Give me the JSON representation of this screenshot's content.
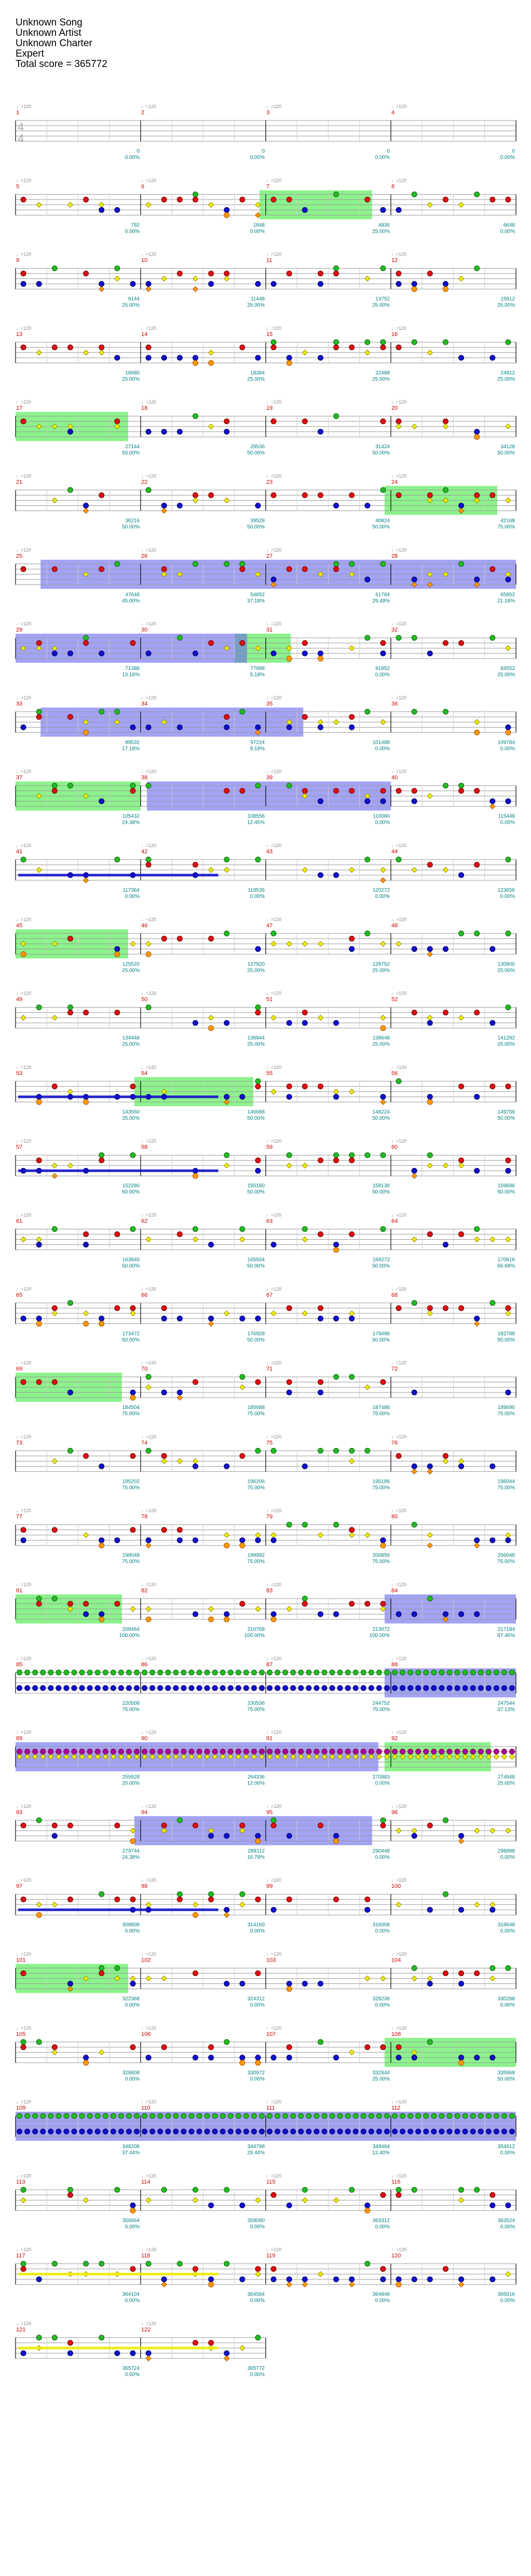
{
  "header": {
    "song": "Unknown Song",
    "artist": "Unknown Artist",
    "charter": "Unknown Charter",
    "difficulty": "Expert",
    "total_score": "Total score = 365772"
  },
  "time_signature": {
    "top": "4",
    "bottom": "4"
  },
  "bpm_label": "♩=120",
  "colors": {
    "green": "#22bb22",
    "red": "#dd1111",
    "yellow": "#eeee00",
    "blue": "#1111cc",
    "orange": "#ff9900",
    "purple": "#aa00aa",
    "sp_phrase": "#66ee66",
    "sp_active": "#6666ee",
    "score_text": "#008080",
    "measure_num": "#cc0000"
  },
  "rows": [
    {
      "m": 1,
      "scores": [
        "0",
        "0",
        "0",
        "0"
      ],
      "pcts": [
        "0.00%",
        "0.00%",
        "0.00%",
        "0.00%"
      ],
      "intro": true
    },
    {
      "m": 5,
      "scores": [
        "792",
        "1848",
        "4836",
        "6648"
      ],
      "pcts": [
        "0.00%",
        "0.00%",
        "25.00%",
        "0.00%"
      ]
    },
    {
      "m": 9,
      "scores": [
        "9144",
        "11448",
        "13752",
        "15912"
      ],
      "pcts": [
        "25.00%",
        "25.00%",
        "25.00%",
        "25.00%"
      ]
    },
    {
      "m": 13,
      "scores": [
        "16680",
        "18384",
        "22488",
        "24912"
      ],
      "pcts": [
        "25.00%",
        "25.00%",
        "25.00%",
        "25.00%"
      ]
    },
    {
      "m": 17,
      "scores": [
        "27144",
        "29536",
        "31424",
        "34128"
      ],
      "pcts": [
        "50.00%",
        "50.00%",
        "50.00%",
        "50.00%"
      ]
    },
    {
      "m": 21,
      "scores": [
        "36216",
        "39528",
        "40824",
        "42168"
      ],
      "pcts": [
        "50.00%",
        "50.00%",
        "50.00%",
        "75.00%"
      ]
    },
    {
      "m": 25,
      "scores": [
        "47648",
        "54852",
        "61764",
        "65852"
      ],
      "pcts": [
        "45.00%",
        "37.18%",
        "29.49%",
        "21.18%"
      ]
    },
    {
      "m": 29,
      "scores": [
        "71388",
        "77988",
        "81852",
        "84552"
      ],
      "pcts": [
        "13.18%",
        "5.18%",
        "0.00%",
        "25.00%"
      ]
    },
    {
      "m": 33,
      "scores": [
        "89532",
        "97224",
        "101488",
        "109784"
      ],
      "pcts": [
        "17.18%",
        "9.18%",
        "0.00%",
        "0.00%"
      ]
    },
    {
      "m": 37,
      "scores": [
        "105432",
        "108556",
        "110080",
        "115448"
      ],
      "pcts": [
        "24.38%",
        "12.45%",
        "0.00%",
        "0.00%"
      ]
    },
    {
      "m": 41,
      "scores": [
        "117364",
        "119536",
        "120272",
        "123656"
      ],
      "pcts": [
        "0.00%",
        "0.00%",
        "0.00%",
        "0.00%"
      ]
    },
    {
      "m": 45,
      "scores": [
        "125520",
        "127920",
        "128752",
        "130800"
      ],
      "pcts": [
        "25.00%",
        "25.00%",
        "25.00%",
        "25.00%"
      ]
    },
    {
      "m": 49,
      "scores": [
        "134448",
        "136944",
        "138648",
        "141292"
      ],
      "pcts": [
        "25.00%",
        "25.00%",
        "25.00%",
        "25.00%"
      ]
    },
    {
      "m": 53,
      "scores": [
        "143560",
        "146688",
        "148224",
        "149756"
      ],
      "pcts": [
        "25.00%",
        "50.00%",
        "50.00%",
        "50.00%"
      ]
    },
    {
      "m": 57,
      "scores": [
        "152280",
        "155160",
        "158136",
        "159696"
      ],
      "pcts": [
        "50.00%",
        "50.00%",
        "50.00%",
        "50.00%"
      ]
    },
    {
      "m": 61,
      "scores": [
        "163840",
        "165504",
        "169272",
        "170616"
      ],
      "pcts": [
        "50.00%",
        "50.00%",
        "50.00%",
        "66.68%"
      ]
    },
    {
      "m": 65,
      "scores": [
        "173472",
        "176928",
        "179496",
        "182788"
      ],
      "pcts": [
        "50.00%",
        "50.00%",
        "50.00%",
        "50.00%"
      ]
    },
    {
      "m": 69,
      "scores": [
        "184504",
        "185688",
        "187486",
        "189090"
      ],
      "pcts": [
        "75.00%",
        "75.00%",
        "75.00%",
        "75.00%"
      ]
    },
    {
      "m": 73,
      "scores": [
        "195202",
        "196206",
        "195186",
        "196044"
      ],
      "pcts": [
        "75.00%",
        "75.00%",
        "75.00%",
        "75.00%"
      ]
    },
    {
      "m": 77,
      "scores": [
        "198048",
        "199992",
        "200856",
        "206048"
      ],
      "pcts": [
        "75.00%",
        "75.00%",
        "75.00%",
        "75.00%"
      ]
    },
    {
      "m": 81,
      "scores": [
        "208464",
        "210768",
        "213072",
        "217184"
      ],
      "pcts": [
        "100.00%",
        "100.00%",
        "100.00%",
        "87.46%"
      ]
    },
    {
      "m": 85,
      "scores": [
        "220508",
        "230536",
        "244752",
        "247544"
      ],
      "pcts": [
        "75.00%",
        "75.00%",
        "75.00%",
        "37.13%"
      ]
    },
    {
      "m": 89,
      "scores": [
        "255528",
        "264336",
        "270883",
        "274848"
      ],
      "pcts": [
        "20.00%",
        "12.00%",
        "0.00%",
        "25.00%"
      ]
    },
    {
      "m": 93,
      "scores": [
        "279744",
        "288112",
        "290448",
        "298888"
      ],
      "pcts": [
        "24.38%",
        "16.78%",
        "0.00%",
        "0.00%"
      ]
    },
    {
      "m": 97,
      "scores": [
        "308808",
        "314160",
        "316008",
        "318648"
      ],
      "pcts": [
        "0.00%",
        "0.00%",
        "0.00%",
        "0.00%"
      ]
    },
    {
      "m": 101,
      "scores": [
        "322368",
        "324312",
        "328236",
        "330288"
      ],
      "pcts": [
        "0.00%",
        "0.00%",
        "0.00%",
        "0.00%"
      ]
    },
    {
      "m": 105,
      "scores": [
        "328608",
        "330972",
        "332944",
        "335968"
      ],
      "pcts": [
        "0.00%",
        "0.00%",
        "25.00%",
        "50.00%"
      ]
    },
    {
      "m": 109,
      "scores": [
        "348208",
        "344798",
        "348464",
        "354912"
      ],
      "pcts": [
        "37.44%",
        "29.44%",
        "12.40%",
        "0.00%"
      ]
    },
    {
      "m": 113,
      "scores": [
        "356664",
        "358080",
        "363312",
        "363524"
      ],
      "pcts": [
        "0.00%",
        "0.00%",
        "0.00%",
        "0.00%"
      ]
    },
    {
      "m": 117,
      "scores": [
        "364104",
        "364584",
        "364848",
        "365016"
      ],
      "pcts": [
        "0.00%",
        "0.00%",
        "0.00%",
        "0.00%"
      ]
    },
    {
      "m": 121,
      "scores": [
        "365724",
        "365772"
      ],
      "pcts": [
        "0.00%",
        "0.00%"
      ],
      "short": true
    }
  ]
}
